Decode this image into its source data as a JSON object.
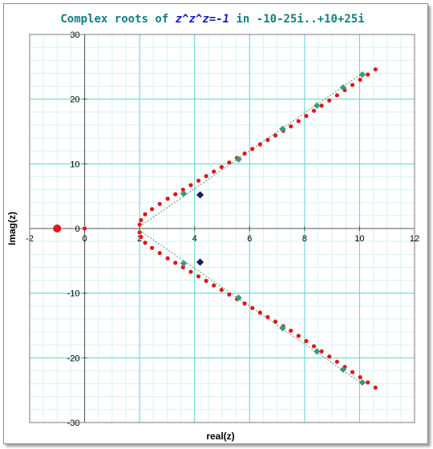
{
  "chart_data": {
    "type": "scatter",
    "title": {
      "prefix": "Complex roots of ",
      "formula": "z^z^z=-1",
      "suffix": " in -10-25i..+10+25i"
    },
    "xlabel": "real(z)",
    "ylabel": "Imag(z)",
    "xlim": [
      -2,
      12
    ],
    "ylim": [
      -30,
      30
    ],
    "x_major_ticks": [
      -2,
      0,
      2,
      4,
      6,
      8,
      10,
      12
    ],
    "y_major_ticks": [
      -30,
      -20,
      -10,
      0,
      10,
      20,
      30
    ],
    "x_minor_step": 0.5,
    "y_minor_step": 2,
    "grid": true,
    "colors": {
      "title": "#0f7f7f",
      "formula": "#1a1ac8",
      "grid_major": "#66d4d4",
      "grid_minor": "#d6f3f3",
      "red_series": "#e01818",
      "green_series": "#3d9a78",
      "navy_series": "#1a1a6a",
      "trend": "#3a7a5a"
    },
    "series": [
      {
        "marker": "circle",
        "color": "#e01818",
        "size": 2.6,
        "points": [
          [
            0,
            0
          ],
          [
            2.0,
            -0.6
          ],
          [
            2.0,
            0.6
          ],
          [
            2.05,
            -1.3
          ],
          [
            2.05,
            1.3
          ],
          [
            2.2,
            -2.2
          ],
          [
            2.2,
            2.2
          ],
          [
            2.45,
            -3.0
          ],
          [
            2.45,
            3.0
          ],
          [
            2.73,
            -3.8
          ],
          [
            2.73,
            3.8
          ],
          [
            3.02,
            -4.6
          ],
          [
            3.02,
            4.6
          ],
          [
            3.3,
            -5.3
          ],
          [
            3.3,
            5.3
          ],
          [
            3.58,
            -6.0
          ],
          [
            3.58,
            6.0
          ],
          [
            3.86,
            -6.7
          ],
          [
            3.86,
            6.7
          ],
          [
            4.14,
            -7.4
          ],
          [
            4.14,
            7.4
          ],
          [
            4.42,
            -8.1
          ],
          [
            4.42,
            8.1
          ],
          [
            4.7,
            -8.8
          ],
          [
            4.7,
            8.8
          ],
          [
            4.98,
            -9.5
          ],
          [
            4.98,
            9.5
          ],
          [
            5.26,
            -10.2
          ],
          [
            5.26,
            10.2
          ],
          [
            5.54,
            -10.9
          ],
          [
            5.54,
            10.9
          ],
          [
            5.82,
            -11.6
          ],
          [
            5.82,
            11.6
          ],
          [
            6.1,
            -12.3
          ],
          [
            6.1,
            12.3
          ],
          [
            6.38,
            -13.0
          ],
          [
            6.38,
            13.0
          ],
          [
            6.66,
            -13.7
          ],
          [
            6.66,
            13.7
          ],
          [
            6.94,
            -14.4
          ],
          [
            6.94,
            14.4
          ],
          [
            7.22,
            -15.1
          ],
          [
            7.22,
            15.1
          ],
          [
            7.5,
            -15.8
          ],
          [
            7.5,
            15.8
          ],
          [
            7.78,
            -16.6
          ],
          [
            7.78,
            16.6
          ],
          [
            8.06,
            -17.4
          ],
          [
            8.06,
            17.4
          ],
          [
            8.34,
            -18.2
          ],
          [
            8.34,
            18.2
          ],
          [
            8.62,
            -19.0
          ],
          [
            8.62,
            19.0
          ],
          [
            8.9,
            -19.8
          ],
          [
            8.9,
            19.8
          ],
          [
            9.18,
            -20.6
          ],
          [
            9.18,
            20.6
          ],
          [
            9.46,
            -21.4
          ],
          [
            9.46,
            21.4
          ],
          [
            9.74,
            -22.2
          ],
          [
            9.74,
            22.2
          ],
          [
            10.02,
            -23.0
          ],
          [
            10.02,
            23.0
          ],
          [
            10.3,
            -23.8
          ],
          [
            10.3,
            23.8
          ],
          [
            10.58,
            -24.6
          ],
          [
            10.58,
            24.6
          ]
        ]
      },
      {
        "marker": "circle",
        "color": "#e01818",
        "size": 5,
        "points": [
          [
            -1,
            0
          ]
        ]
      },
      {
        "marker": "diamond",
        "color": "#3d9a78",
        "size": 4.2,
        "points": [
          [
            3.6,
            5.4
          ],
          [
            3.6,
            -5.4
          ],
          [
            5.6,
            10.7
          ],
          [
            5.6,
            -10.7
          ],
          [
            7.2,
            15.4
          ],
          [
            7.2,
            -15.4
          ],
          [
            8.45,
            19.0
          ],
          [
            8.45,
            -19.0
          ],
          [
            9.4,
            21.8
          ],
          [
            9.4,
            -21.8
          ],
          [
            10.1,
            23.8
          ],
          [
            10.1,
            -23.8
          ]
        ]
      },
      {
        "marker": "diamond",
        "color": "#1a1a6a",
        "size": 4.6,
        "points": [
          [
            4.2,
            5.2
          ],
          [
            4.2,
            -5.2
          ]
        ]
      }
    ],
    "trend_lines": [
      [
        [
          2.0,
          0.3
        ],
        [
          10.1,
          24.0
        ]
      ],
      [
        [
          2.0,
          -0.3
        ],
        [
          10.1,
          -24.0
        ]
      ]
    ]
  }
}
